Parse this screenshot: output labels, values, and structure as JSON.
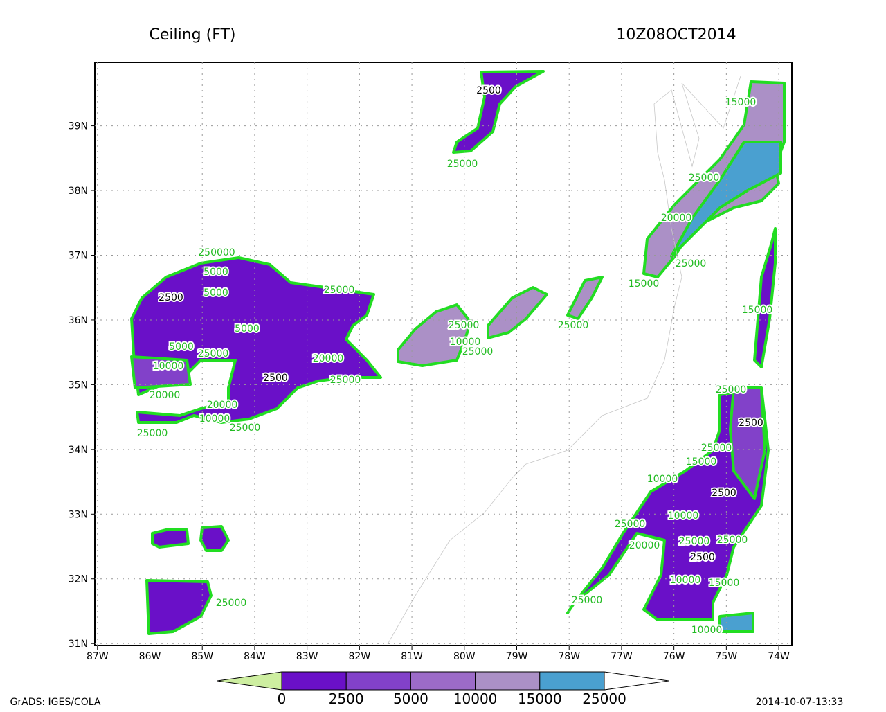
{
  "title": "Ceiling (FT)",
  "time": "10Z08OCT2014",
  "map": {
    "xlim": [
      -87.05,
      -73.75
    ],
    "ylim": [
      30.97,
      39.98
    ],
    "grid": true,
    "xticks": [
      {
        "value": -87,
        "label": "87W"
      },
      {
        "value": -86,
        "label": "86W"
      },
      {
        "value": -85,
        "label": "85W"
      },
      {
        "value": -84,
        "label": "84W"
      },
      {
        "value": -83,
        "label": "83W"
      },
      {
        "value": -82,
        "label": "82W"
      },
      {
        "value": -81,
        "label": "81W"
      },
      {
        "value": -80,
        "label": "80W"
      },
      {
        "value": -79,
        "label": "79W"
      },
      {
        "value": -78,
        "label": "78W"
      },
      {
        "value": -77,
        "label": "77W"
      },
      {
        "value": -76,
        "label": "76W"
      },
      {
        "value": -75,
        "label": "75W"
      },
      {
        "value": -74,
        "label": "74W"
      }
    ],
    "yticks": [
      {
        "value": 31,
        "label": "31N"
      },
      {
        "value": 32,
        "label": "32N"
      },
      {
        "value": 33,
        "label": "33N"
      },
      {
        "value": 34,
        "label": "34N"
      },
      {
        "value": 35,
        "label": "35N"
      },
      {
        "value": 36,
        "label": "36N"
      },
      {
        "value": 37,
        "label": "37N"
      },
      {
        "value": 38,
        "label": "38N"
      },
      {
        "value": 39,
        "label": "39N"
      }
    ]
  },
  "colorbar": {
    "levels": [
      0,
      2500,
      5000,
      10000,
      15000,
      25000
    ],
    "colors": [
      "#cdeea0",
      "#6a10c8",
      "#8241c9",
      "#9c6bc8",
      "#ab90c6",
      "#4aa0d0",
      "#ffffff"
    ]
  },
  "contour_labels": [
    "2500",
    "25000",
    "15000",
    "25000",
    "20000",
    "25000",
    "15000",
    "15000",
    "250000",
    "5000",
    "5000",
    "2500",
    "25000",
    "25000",
    "10000",
    "25000",
    "25000",
    "5000",
    "5000",
    "25000",
    "10000",
    "20000",
    "2500",
    "25000",
    "20000",
    "10000",
    "25000",
    "25000",
    "20000",
    "25000",
    "2500",
    "25000",
    "15000",
    "10000",
    "2500",
    "10000",
    "25000",
    "20000",
    "25000",
    "25000",
    "2500",
    "10000",
    "15000",
    "25000",
    "25000",
    "10000"
  ],
  "footer": {
    "left": "GrADS: IGES/COLA",
    "right": "2014-10-07-13:33"
  }
}
